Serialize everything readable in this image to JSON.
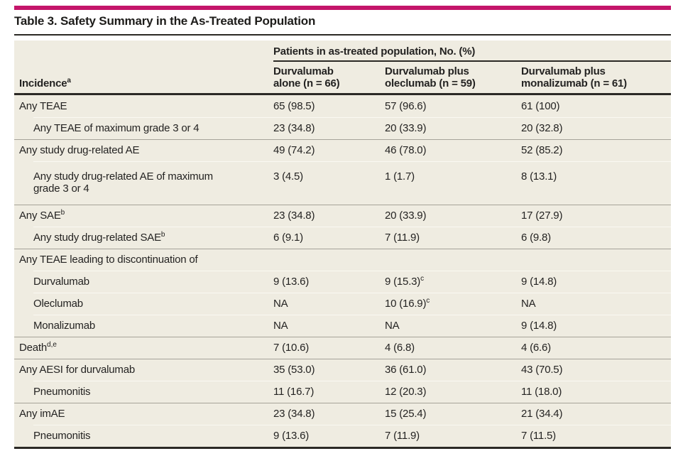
{
  "accent_color": "#c4156a",
  "title": "Table 3. Safety Summary in the As-Treated Population",
  "table": {
    "spanner": "Patients in as-treated population, No. (%)",
    "row_header": "Incidence^a",
    "columns": [
      "Durvalumab\nalone (n = 66)",
      "Durvalumab plus\noleclumab (n = 59)",
      "Durvalumab plus\nmonalizumab (n = 61)"
    ],
    "rows": [
      {
        "label": "Any TEAE",
        "indent": 0,
        "sep": "none",
        "values": [
          "65 (98.5)",
          "57 (96.6)",
          "61 (100)"
        ]
      },
      {
        "label": "Any TEAE of maximum grade 3 or 4",
        "indent": 1,
        "sep": "sub",
        "values": [
          "23 (34.8)",
          "20 (33.9)",
          "20 (32.8)"
        ]
      },
      {
        "label": "Any study drug-related AE",
        "indent": 0,
        "sep": "group",
        "values": [
          "49 (74.2)",
          "46 (78.0)",
          "52 (85.2)"
        ]
      },
      {
        "label": "Any study drug-related AE of maximum\ngrade 3 or 4",
        "indent": 1,
        "sep": "sub",
        "values": [
          "3 (4.5)",
          "1 (1.7)",
          "8 (13.1)"
        ]
      },
      {
        "label": "Any SAE^b",
        "indent": 0,
        "sep": "group",
        "values": [
          "23 (34.8)",
          "20 (33.9)",
          "17 (27.9)"
        ]
      },
      {
        "label": "Any study drug-related SAE^b",
        "indent": 1,
        "sep": "sub",
        "values": [
          "6 (9.1)",
          "7 (11.9)",
          "6 (9.8)"
        ]
      },
      {
        "label": "Any TEAE leading to discontinuation of",
        "indent": 0,
        "sep": "group",
        "values": [
          "",
          "",
          ""
        ]
      },
      {
        "label": "Durvalumab",
        "indent": 1,
        "sep": "sub",
        "values": [
          "9 (13.6)",
          "9 (15.3)^c",
          "9 (14.8)"
        ]
      },
      {
        "label": "Oleclumab",
        "indent": 1,
        "sep": "sub",
        "values": [
          "NA",
          "10 (16.9)^c",
          "NA"
        ]
      },
      {
        "label": "Monalizumab",
        "indent": 1,
        "sep": "sub",
        "values": [
          "NA",
          "NA",
          "9 (14.8)"
        ]
      },
      {
        "label": "Death^d,e",
        "indent": 0,
        "sep": "group",
        "values": [
          "7 (10.6)",
          "4 (6.8)",
          "4 (6.6)"
        ]
      },
      {
        "label": "Any AESI for durvalumab",
        "indent": 0,
        "sep": "group",
        "values": [
          "35 (53.0)",
          "36 (61.0)",
          "43 (70.5)"
        ]
      },
      {
        "label": "Pneumonitis",
        "indent": 1,
        "sep": "sub",
        "values": [
          "11 (16.7)",
          "12 (20.3)",
          "11 (18.0)"
        ]
      },
      {
        "label": "Any imAE",
        "indent": 0,
        "sep": "group",
        "values": [
          "23 (34.8)",
          "15 (25.4)",
          "21 (34.4)"
        ]
      },
      {
        "label": "Pneumonitis",
        "indent": 1,
        "sep": "sub",
        "values": [
          "9 (13.6)",
          "7 (11.9)",
          "7 (11.5)"
        ]
      }
    ]
  }
}
